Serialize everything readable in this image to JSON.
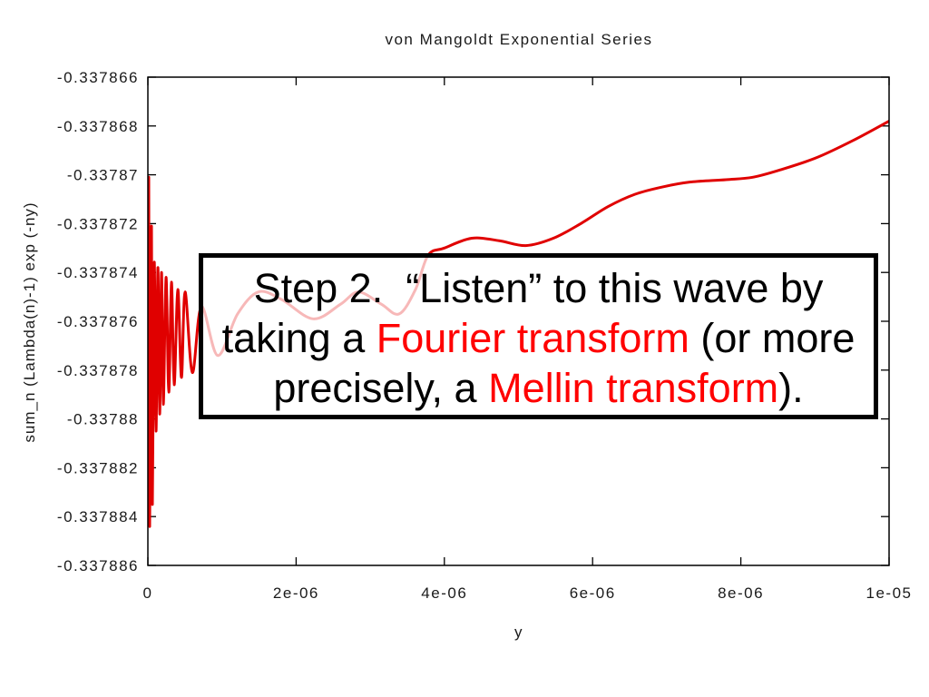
{
  "chart_data": {
    "type": "line",
    "title": "von Mangoldt Exponential Series",
    "xlabel": "y",
    "ylabel": "sum_n (Lambda(n)-1) exp (-ny)",
    "xlim": [
      0,
      1e-05
    ],
    "ylim": [
      -0.337886,
      -0.337866
    ],
    "xticks": [
      "0",
      "2e-06",
      "4e-06",
      "6e-06",
      "8e-06",
      "1e-05"
    ],
    "yticks": [
      "-0.337866",
      "-0.337868",
      "-0.33787",
      "-0.337872",
      "-0.337874",
      "-0.337876",
      "-0.337878",
      "-0.33788",
      "-0.337882",
      "-0.337884",
      "-0.337886"
    ],
    "grid": false,
    "series": [
      {
        "color": "#e00000",
        "x": [
          1.2e-08,
          2.4e-08,
          4.9e-08,
          6.1e-08,
          8.6e-08,
          1.1e-07,
          1.35e-07,
          1.59e-07,
          1.84e-07,
          2.08e-07,
          2.45e-07,
          2.82e-07,
          3.18e-07,
          3.55e-07,
          4.04e-07,
          4.53e-07,
          5.02e-07,
          6e-07,
          7.22e-07,
          9.42e-07,
          1.21e-06,
          1.49e-06,
          1.8e-06,
          2.23e-06,
          2.6e-06,
          2.84e-06,
          3.15e-06,
          3.39e-06,
          3.61e-06,
          3.78e-06,
          4e-06,
          4.37e-06,
          4.74e-06,
          5.1e-06,
          5.47e-06,
          5.84e-06,
          6.21e-06,
          6.57e-06,
          6.94e-06,
          7.31e-06,
          7.8e-06,
          8.16e-06,
          8.53e-06,
          9.02e-06,
          9.51e-06,
          1e-05
        ],
        "y": [
          -0.3378701,
          -0.3378844,
          -0.3378721,
          -0.3378835,
          -0.3378736,
          -0.3378805,
          -0.3378738,
          -0.3378798,
          -0.337874,
          -0.3378794,
          -0.3378742,
          -0.3378789,
          -0.3378744,
          -0.3378786,
          -0.3378747,
          -0.3378783,
          -0.3378748,
          -0.3378781,
          -0.3378754,
          -0.3378774,
          -0.3378757,
          -0.3378748,
          -0.3378751,
          -0.3378759,
          -0.3378753,
          -0.3378748,
          -0.3378753,
          -0.3378757,
          -0.3378747,
          -0.3378733,
          -0.337873,
          -0.3378726,
          -0.3378727,
          -0.3378729,
          -0.3378726,
          -0.337872,
          -0.3378713,
          -0.3378708,
          -0.3378705,
          -0.3378703,
          -0.3378702,
          -0.3378701,
          -0.3378698,
          -0.3378693,
          -0.3378686,
          -0.3378678
        ]
      }
    ]
  },
  "callout": {
    "line1": "Step 2.  “Listen” to this wave by",
    "line2_pre": "taking a ",
    "line2_red": "Fourier transform",
    "line2_post": " (or more",
    "line3_pre": "precisely, a ",
    "line3_red": "Mellin transform",
    "line3_post": ").",
    "text_color": "#000000",
    "highlight_color": "#ff0000"
  }
}
